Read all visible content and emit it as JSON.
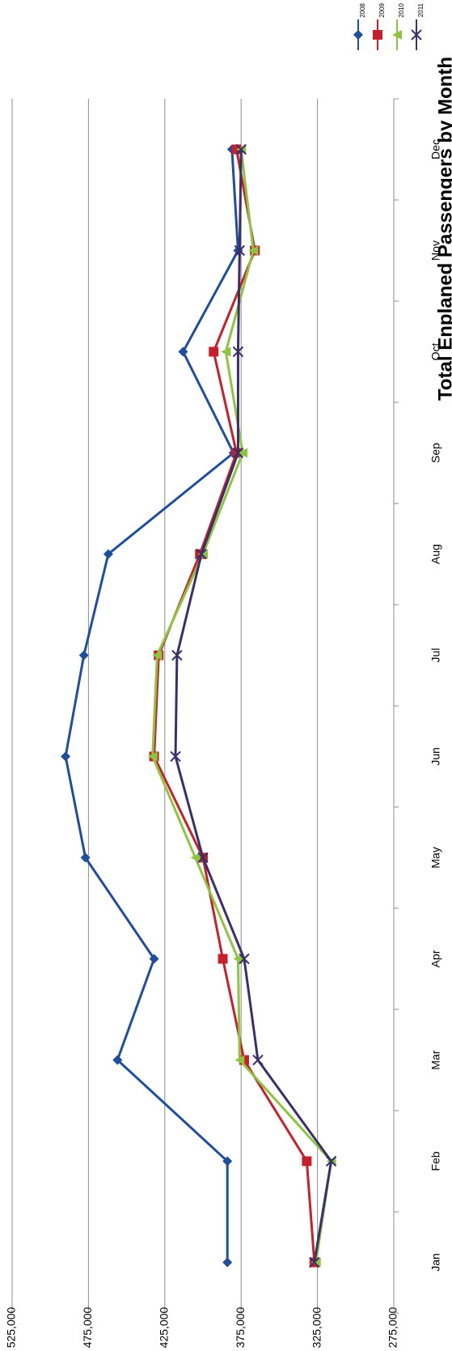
{
  "chart_data": {
    "type": "line",
    "title": "Total Enplaned Passengers by Month",
    "categories": [
      "Jan",
      "Feb",
      "Mar",
      "Apr",
      "May",
      "Jun",
      "Jul",
      "Aug",
      "Sep",
      "Oct",
      "Nov",
      "Dec"
    ],
    "series": [
      {
        "name": "2008",
        "color": "#1f4e9c",
        "marker": "diamond",
        "values": [
          384000,
          384000,
          456000,
          432000,
          477000,
          490000,
          478000,
          462000,
          380000,
          413000,
          377000,
          381000
        ]
      },
      {
        "name": "2009",
        "color": "#c8202a",
        "marker": "square",
        "values": [
          327000,
          332000,
          373000,
          387000,
          400000,
          432000,
          429000,
          402000,
          378000,
          393000,
          366000,
          378000
        ]
      },
      {
        "name": "2010",
        "color": "#8cc63f",
        "marker": "triangle",
        "values": [
          326000,
          316000,
          376000,
          377000,
          405000,
          433000,
          430000,
          400000,
          374000,
          385000,
          367000,
          375000
        ]
      },
      {
        "name": "2011",
        "color": "#3b2f6b",
        "marker": "x",
        "values": [
          327000,
          316000,
          364000,
          373000,
          400000,
          418000,
          417000,
          401000,
          377000,
          377000,
          376000,
          375000
        ]
      }
    ],
    "ylim": [
      275000,
      525000
    ],
    "yticks": [
      {
        "value": 275000,
        "label": "275,000"
      },
      {
        "value": 325000,
        "label": "325,000"
      },
      {
        "value": 375000,
        "label": "375,000"
      },
      {
        "value": 425000,
        "label": "425,000"
      },
      {
        "value": 475000,
        "label": "475,000"
      },
      {
        "value": 525000,
        "label": "525,000"
      }
    ],
    "grid": true,
    "rotated": true
  }
}
